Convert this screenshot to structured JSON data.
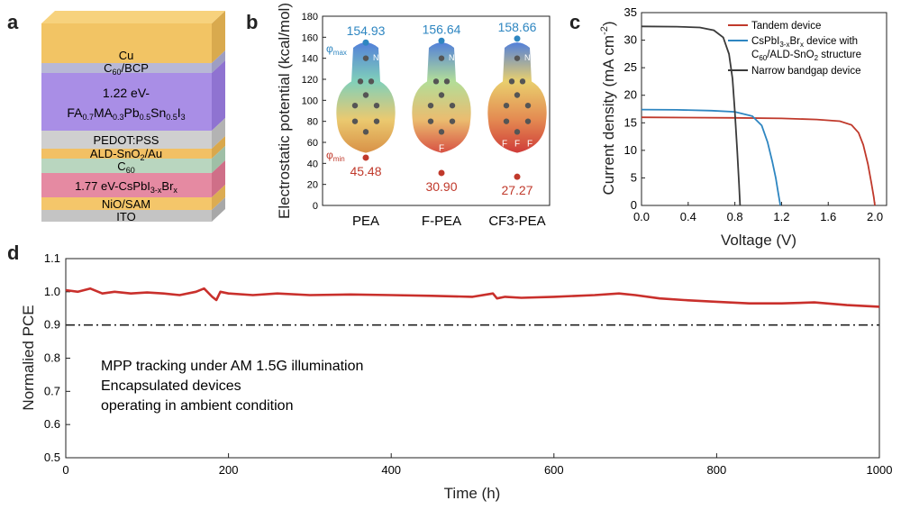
{
  "figure": {
    "panels": {
      "a": {
        "letter": "a",
        "layers": [
          {
            "label": "Cu"
          },
          {
            "label": "C60/BCP",
            "base": "C",
            "sub": "60",
            "tail": "/BCP"
          },
          {
            "label_line1": "1.22 eV-",
            "label_line2": "FA0.7MA0.3Pb0.5Sn0.5I3"
          },
          {
            "label": "PEDOT:PSS"
          },
          {
            "label": "ALD-SnO2/Au",
            "base": "ALD-SnO",
            "sub": "2",
            "tail": "/Au"
          },
          {
            "label": "C60",
            "base": "C",
            "sub": "60",
            "tail": ""
          },
          {
            "label": "1.77 eV-CsPbI3-xBrx"
          },
          {
            "label": "NiO/SAM"
          },
          {
            "label": "ITO"
          }
        ],
        "colors": {
          "cu": "#f2c464",
          "c60bcp": "#b8b8d6",
          "narrow": "#a98ee6",
          "pedot": "#cfcfcf",
          "sno2": "#f2c064",
          "c60": "#b9d6bf",
          "wide": "#e58aa2",
          "nio": "#f4c66a",
          "ito": "#c4c4c4"
        }
      },
      "b": {
        "letter": "b",
        "ylabel": "Electrostatic potential (kcal/mol)",
        "phi_max_label": "φmax",
        "phi_min_label": "φmin",
        "max_color": "#2e86c1",
        "min_color": "#c0392b",
        "chart_data": {
          "type": "scatter",
          "categories": [
            "PEA",
            "F-PEA",
            "CF3-PEA"
          ],
          "series": [
            {
              "name": "φmax",
              "values": [
                154.93,
                156.64,
                158.66
              ]
            },
            {
              "name": "φmin",
              "values": [
                45.48,
                30.9,
                27.27
              ]
            }
          ],
          "value_labels_max": [
            "154.93",
            "156.64",
            "158.66"
          ],
          "value_labels_min": [
            "45.48",
            "30.90",
            "27.27"
          ],
          "ylim": [
            0,
            180
          ],
          "yticks": [
            0,
            20,
            40,
            60,
            80,
            100,
            120,
            140,
            160,
            180
          ],
          "atom_labels": [
            [
              "N"
            ],
            [
              "N",
              "F"
            ],
            [
              "N",
              "F",
              "F",
              "F"
            ]
          ]
        }
      },
      "c": {
        "letter": "c",
        "xlabel": "Voltage (V)",
        "ylabel": "Current density (mA cm⁻²)",
        "legend": {
          "tandem": "Tandem device",
          "wide_line1": "CsPbI3-xBrx device with",
          "wide_line2": "C60/ALD-SnO2 structure",
          "narrow": "Narrow bandgap device"
        },
        "chart_data": {
          "type": "line",
          "xlim": [
            0,
            2.1
          ],
          "ylim": [
            0,
            35
          ],
          "xticks": [
            0.0,
            0.4,
            0.8,
            1.2,
            1.6,
            2.0
          ],
          "xticklabels": [
            "0.0",
            "0.4",
            "0.8",
            "1.2",
            "1.6",
            "2.0"
          ],
          "yticks": [
            0,
            5,
            10,
            15,
            20,
            25,
            30,
            35
          ],
          "legend_position": "top-right",
          "series": [
            {
              "name": "Tandem device",
              "color": "#c0392b",
              "x": [
                0.0,
                0.4,
                0.8,
                1.2,
                1.5,
                1.7,
                1.8,
                1.86,
                1.9,
                1.94,
                1.97,
                1.99,
                2.0
              ],
              "y": [
                16.0,
                15.95,
                15.9,
                15.8,
                15.6,
                15.3,
                14.6,
                13.2,
                11.0,
                7.5,
                4.0,
                1.5,
                0.0
              ]
            },
            {
              "name": "CsPbI3-xBrx device with C60/ALD-SnO2 structure",
              "color": "#2e86c1",
              "x": [
                0.0,
                0.3,
                0.6,
                0.8,
                0.95,
                1.03,
                1.08,
                1.12,
                1.15,
                1.17,
                1.19
              ],
              "y": [
                17.4,
                17.35,
                17.2,
                17.0,
                16.2,
                14.5,
                11.5,
                8.0,
                5.0,
                2.5,
                0.0
              ]
            },
            {
              "name": "Narrow bandgap device",
              "color": "#3a3a3a",
              "x": [
                0.0,
                0.3,
                0.5,
                0.62,
                0.7,
                0.75,
                0.78,
                0.8,
                0.82,
                0.835,
                0.845
              ],
              "y": [
                32.5,
                32.45,
                32.3,
                31.8,
                30.5,
                27.5,
                23.0,
                17.0,
                10.0,
                4.0,
                0.0
              ]
            }
          ]
        }
      },
      "d": {
        "letter": "d",
        "xlabel": "Time (h)",
        "ylabel": "Normalied PCE",
        "annotation": [
          "MPP tracking under AM 1.5G illumination",
          "Encapsulated devices",
          "operating in ambient condition"
        ],
        "chart_data": {
          "type": "line",
          "xlim": [
            0,
            1000
          ],
          "ylim": [
            0.5,
            1.1
          ],
          "xticks": [
            0,
            200,
            400,
            600,
            800,
            1000
          ],
          "yticks": [
            0.5,
            0.6,
            0.7,
            0.8,
            0.9,
            1.0,
            1.1
          ],
          "yticklabels": [
            "0.5",
            "0.6",
            "0.7",
            "0.8",
            "0.9",
            "1.0",
            "1.1"
          ],
          "reference_line_y": 0.9,
          "series": [
            {
              "name": "PCE",
              "color": "#c9302c",
              "x": [
                0,
                15,
                30,
                45,
                60,
                80,
                100,
                120,
                140,
                160,
                170,
                180,
                185,
                190,
                200,
                230,
                260,
                300,
                350,
                400,
                450,
                500,
                525,
                530,
                540,
                560,
                600,
                650,
                680,
                700,
                730,
                760,
                800,
                840,
                880,
                920,
                960,
                1000
              ],
              "y": [
                1.005,
                1.0,
                1.01,
                0.995,
                1.0,
                0.995,
                0.998,
                0.995,
                0.99,
                1.0,
                1.01,
                0.985,
                0.975,
                1.0,
                0.995,
                0.99,
                0.995,
                0.99,
                0.992,
                0.99,
                0.988,
                0.985,
                0.995,
                0.98,
                0.985,
                0.982,
                0.985,
                0.99,
                0.995,
                0.99,
                0.98,
                0.975,
                0.97,
                0.965,
                0.965,
                0.968,
                0.96,
                0.955
              ]
            }
          ]
        }
      }
    }
  }
}
